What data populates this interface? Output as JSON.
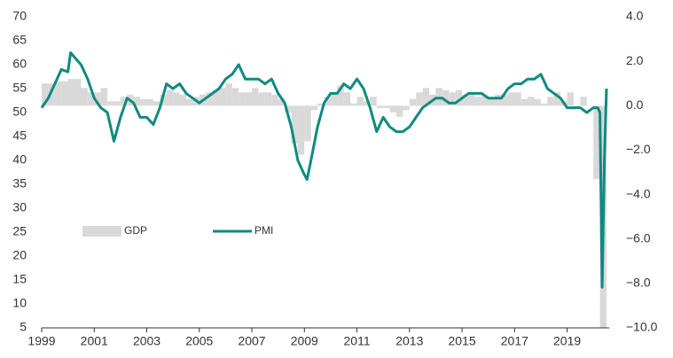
{
  "chart_data": {
    "type": "combo",
    "xlim": [
      1999,
      2020.6
    ],
    "xticks": [
      1999,
      2001,
      2003,
      2005,
      2007,
      2009,
      2011,
      2013,
      2015,
      2017,
      2019
    ],
    "ylim": [
      5,
      70
    ],
    "yticks": [
      5,
      10,
      15,
      20,
      25,
      30,
      35,
      40,
      45,
      50,
      55,
      60,
      65,
      70
    ],
    "y2lim": [
      -10,
      4
    ],
    "y2ticks": [
      {
        "value": 4,
        "label": "4.0"
      },
      {
        "value": 2,
        "label": "2.0"
      },
      {
        "value": 0,
        "label": "0.0"
      },
      {
        "value": -2,
        "label": "−2.0"
      },
      {
        "value": -4,
        "label": "−4.0"
      },
      {
        "value": -6,
        "label": "−6.0"
      },
      {
        "value": -8,
        "label": "−8.0"
      },
      {
        "value": -10,
        "label": "−10.0"
      }
    ],
    "series": [
      {
        "name": "GDP",
        "type": "bar",
        "axis": "y2",
        "color": "#d9d9d9",
        "x": [
          1999,
          1999.25,
          1999.5,
          1999.75,
          2000,
          2000.25,
          2000.5,
          2000.75,
          2001,
          2001.25,
          2001.5,
          2001.75,
          2002,
          2002.25,
          2002.5,
          2002.75,
          2003,
          2003.25,
          2003.5,
          2003.75,
          2004,
          2004.25,
          2004.5,
          2004.75,
          2005,
          2005.25,
          2005.5,
          2005.75,
          2006,
          2006.25,
          2006.5,
          2006.75,
          2007,
          2007.25,
          2007.5,
          2007.75,
          2008,
          2008.25,
          2008.5,
          2008.75,
          2009,
          2009.25,
          2009.5,
          2009.75,
          2010,
          2010.25,
          2010.5,
          2010.75,
          2011,
          2011.25,
          2011.5,
          2011.75,
          2012,
          2012.25,
          2012.5,
          2012.75,
          2013,
          2013.25,
          2013.5,
          2013.75,
          2014,
          2014.25,
          2014.5,
          2014.75,
          2015,
          2015.25,
          2015.5,
          2015.75,
          2016,
          2016.25,
          2016.5,
          2016.75,
          2017,
          2017.25,
          2017.5,
          2017.75,
          2018,
          2018.25,
          2018.5,
          2018.75,
          2019,
          2019.25,
          2019.5,
          2019.75,
          2020,
          2020.25
        ],
        "values": [
          1.0,
          1.0,
          1.1,
          1.1,
          1.2,
          1.2,
          0.8,
          0.6,
          0.6,
          0.8,
          0.2,
          0.2,
          0.4,
          0.5,
          0.4,
          0.3,
          0.3,
          0.2,
          0.5,
          0.7,
          0.6,
          0.5,
          0.3,
          0.4,
          0.5,
          0.6,
          0.7,
          0.8,
          1.0,
          0.8,
          0.6,
          0.6,
          0.8,
          0.6,
          0.6,
          0.5,
          0.3,
          -0.3,
          -1.7,
          -2.2,
          -1.6,
          -0.2,
          0.1,
          0.4,
          0.5,
          0.9,
          0.6,
          0.1,
          0.4,
          0.2,
          0.4,
          -0.1,
          -0.1,
          -0.3,
          -0.5,
          -0.2,
          0.3,
          0.6,
          0.8,
          0.5,
          0.8,
          0.7,
          0.6,
          0.7,
          0.5,
          0.5,
          0.4,
          0.5,
          0.3,
          0.5,
          0.5,
          0.6,
          0.6,
          0.3,
          0.4,
          0.3,
          0.1,
          0.4,
          0.6,
          0.2,
          0.6,
          -0.1,
          0.4,
          0.0,
          -3.3,
          -10
        ]
      },
      {
        "name": "PMI",
        "type": "line",
        "axis": "y",
        "color": "#0f8a80",
        "x": [
          1999,
          1999.25,
          1999.5,
          1999.75,
          2000,
          2000.1,
          2000.5,
          2000.75,
          2001,
          2001.25,
          2001.5,
          2001.75,
          2002,
          2002.25,
          2002.5,
          2002.75,
          2003,
          2003.25,
          2003.5,
          2003.75,
          2004,
          2004.25,
          2004.5,
          2004.75,
          2005,
          2005.25,
          2005.5,
          2005.75,
          2006,
          2006.25,
          2006.5,
          2006.75,
          2007,
          2007.25,
          2007.5,
          2007.75,
          2008,
          2008.25,
          2008.5,
          2008.75,
          2009,
          2009.1,
          2009.25,
          2009.5,
          2009.75,
          2010,
          2010.25,
          2010.5,
          2010.75,
          2011,
          2011.25,
          2011.5,
          2011.75,
          2012,
          2012.25,
          2012.5,
          2012.75,
          2013,
          2013.25,
          2013.5,
          2013.75,
          2014,
          2014.25,
          2014.5,
          2014.75,
          2015,
          2015.25,
          2015.5,
          2015.75,
          2016,
          2016.25,
          2016.5,
          2016.75,
          2017,
          2017.25,
          2017.5,
          2017.75,
          2018,
          2018.25,
          2018.5,
          2018.75,
          2019,
          2019.25,
          2019.5,
          2019.75,
          2020,
          2020.083,
          2020.167,
          2020.25,
          2020.333,
          2020.417,
          2020.5
        ],
        "values": [
          51,
          53,
          56,
          59,
          58.5,
          62.5,
          60,
          57,
          53,
          51,
          50,
          44,
          49,
          53,
          52,
          49,
          49,
          47.5,
          51,
          56,
          55,
          56,
          54,
          53,
          52,
          53,
          54,
          55,
          57,
          58,
          60,
          57,
          57,
          57,
          56,
          57,
          54,
          52,
          47,
          40,
          37,
          36,
          40,
          47,
          52,
          54,
          54,
          56,
          55,
          57,
          55,
          51,
          46,
          49,
          47,
          46,
          46,
          47,
          49,
          51,
          52,
          53,
          53,
          52,
          52,
          53,
          54,
          54,
          54,
          53,
          53,
          53,
          55,
          56,
          56,
          57,
          57,
          58,
          55,
          54,
          53,
          51,
          51,
          51,
          50,
          51,
          51,
          51,
          50,
          13.5,
          40,
          55
        ]
      }
    ]
  }
}
